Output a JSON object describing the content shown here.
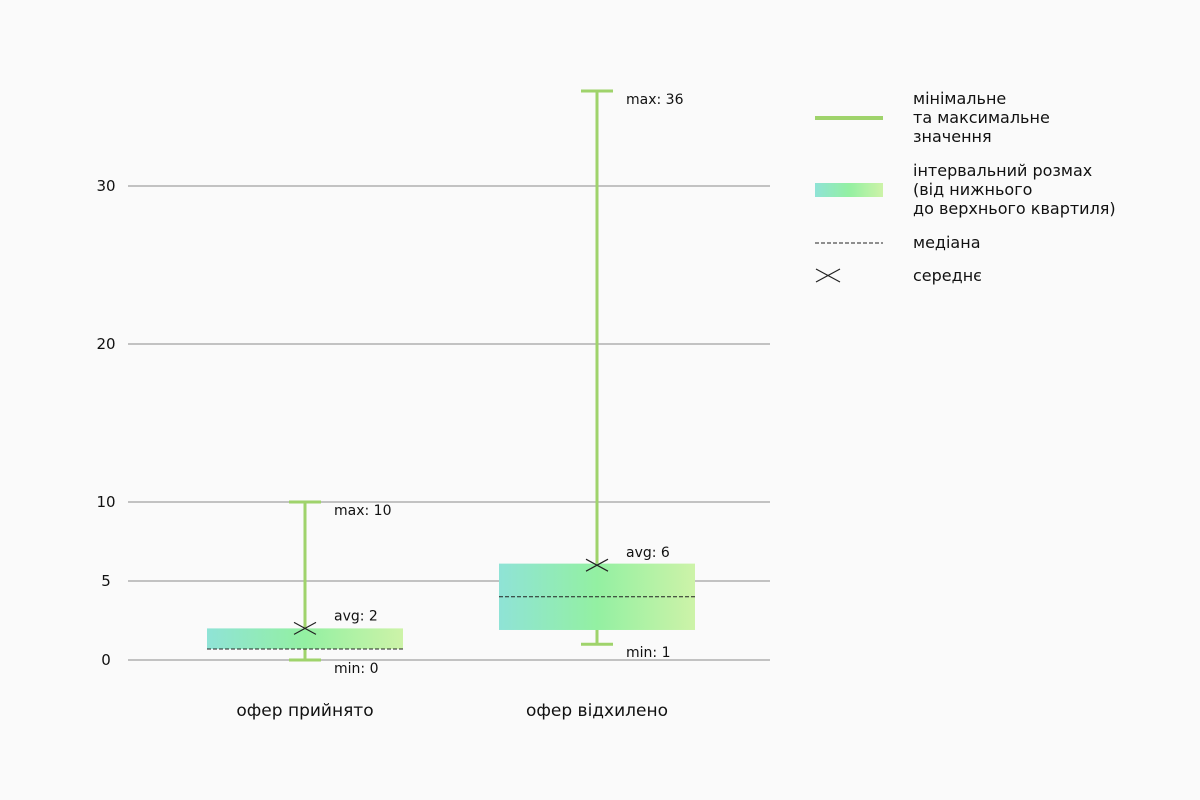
{
  "colors": {
    "whisker": "#9fd36b",
    "box_left": "#8fe3d6",
    "box_mid": "#93f0a2",
    "box_right": "#cdf3a8",
    "grid": "#8a8a8a",
    "median": "#222222",
    "mean": "#222222"
  },
  "chart_data": {
    "type": "boxplot",
    "ylim": [
      0,
      37
    ],
    "y_scale": "piecewise",
    "y_ticks": [
      0,
      5,
      10,
      20,
      30
    ],
    "grid": true,
    "legend_position": "right",
    "categories": [
      "офер прийнято",
      "офер відхилено"
    ],
    "boxes": [
      {
        "category": "офер прийнято",
        "min": 0,
        "q1": 0.7,
        "median": 0.7,
        "q3": 2,
        "max": 10,
        "mean": 2,
        "min_label": "min: 0",
        "max_label": "max: 10",
        "mean_label": "avg: 2"
      },
      {
        "category": "офер відхилено",
        "min": 1,
        "q1": 1.9,
        "median": 4,
        "q3": 6.1,
        "max": 36,
        "mean": 6,
        "min_label": "min: 1",
        "max_label": "max: 36",
        "mean_label": "avg: 6"
      }
    ],
    "legend": [
      {
        "type": "whisker",
        "lines": [
          "мінімальне",
          "та максимальне",
          "значення"
        ]
      },
      {
        "type": "box",
        "lines": [
          "інтервальний розмах",
          "(від нижнього",
          "до верхнього квартиля)"
        ]
      },
      {
        "type": "median",
        "lines": [
          "медіана"
        ]
      },
      {
        "type": "mean",
        "lines": [
          "середнє"
        ]
      }
    ]
  }
}
